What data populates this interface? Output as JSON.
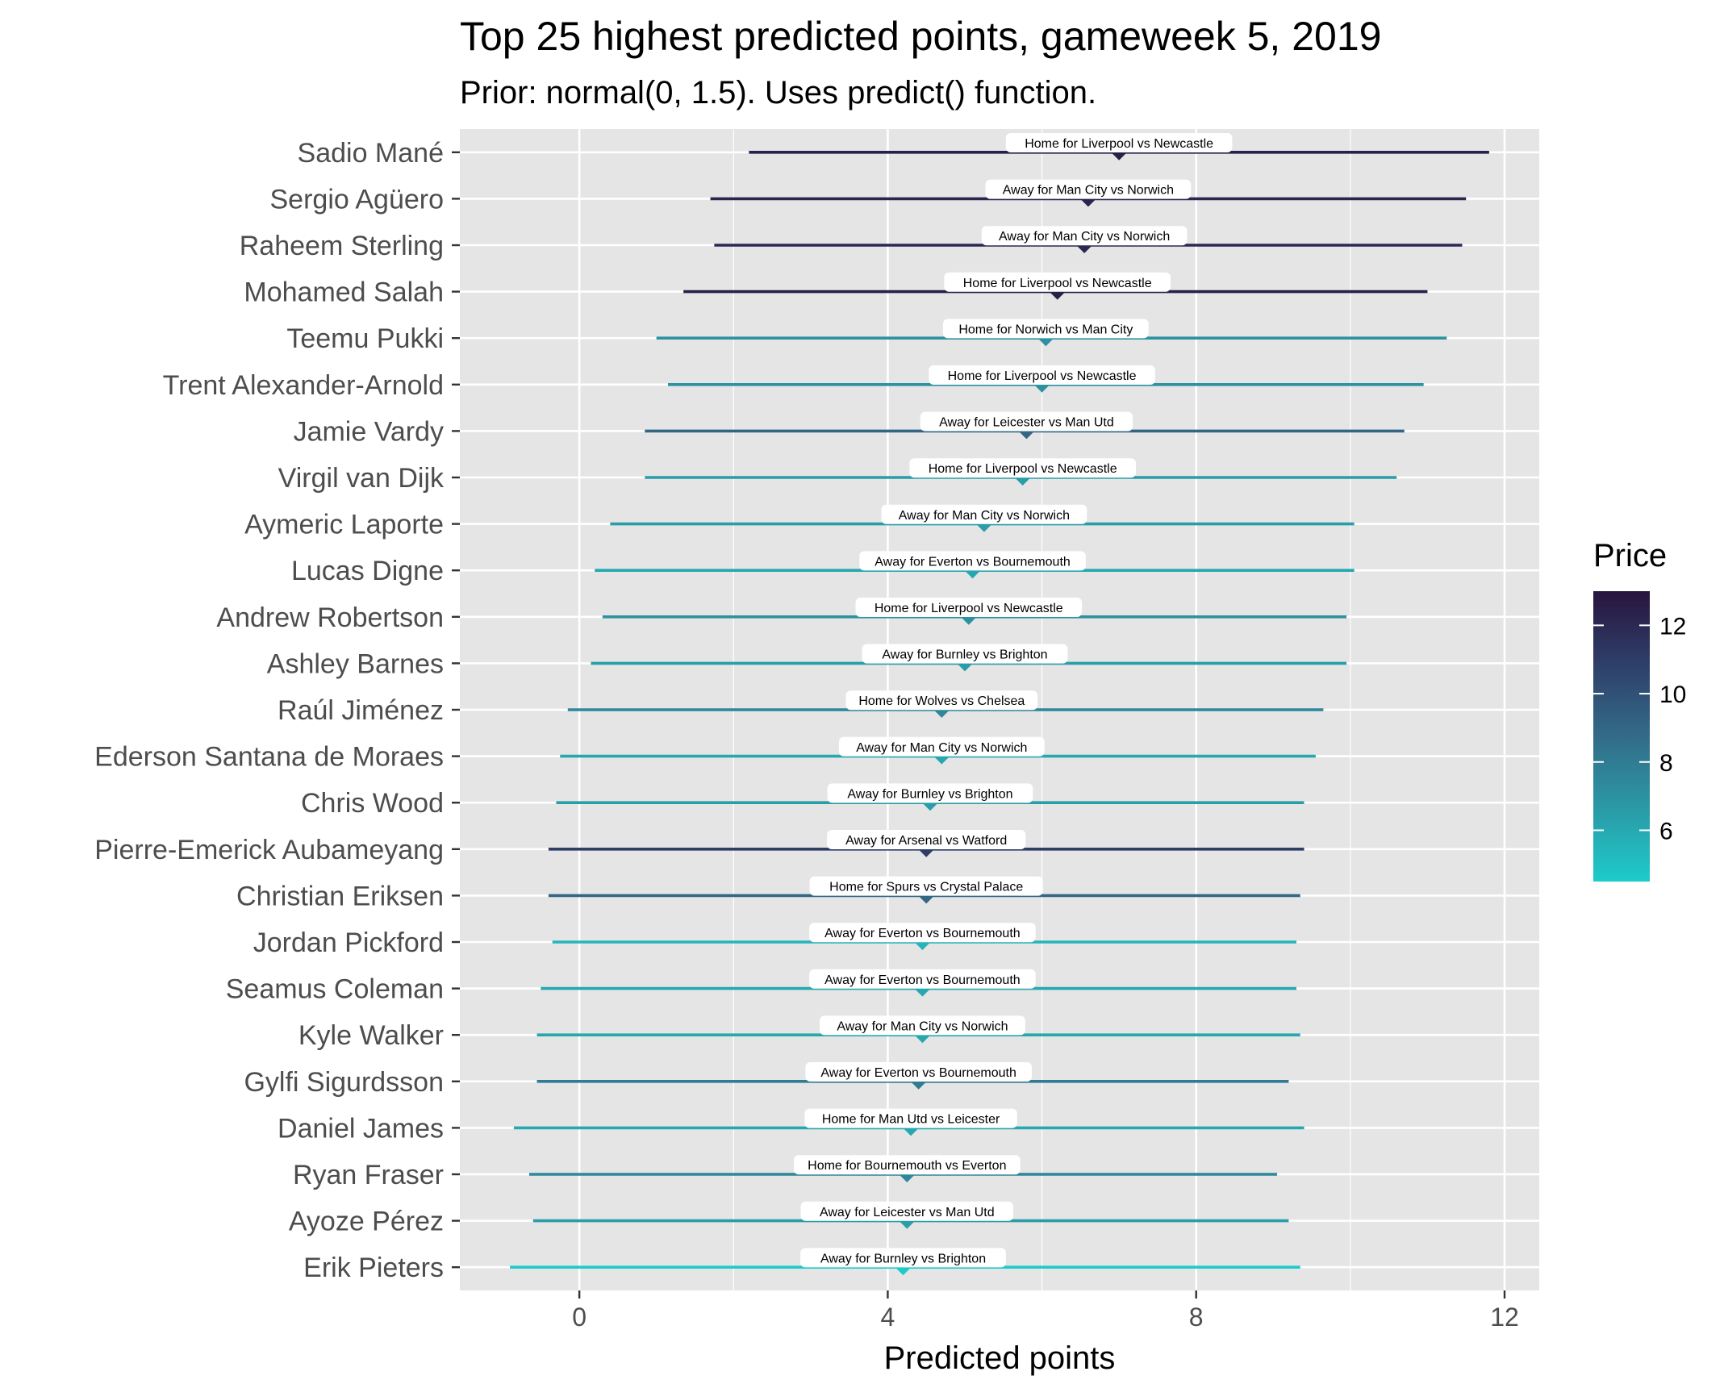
{
  "chart_data": {
    "type": "pointrange",
    "title": "Top 25 highest predicted points, gameweek 5, 2019",
    "subtitle": "Prior: normal(0, 1.5). Uses predict() function.",
    "xlabel": "Predicted points",
    "ylabel": "",
    "xlim": [
      -1.55,
      12.45
    ],
    "x_ticks": [
      0,
      4,
      8,
      12
    ],
    "x_tick_labels": [
      "0",
      "4",
      "8",
      "12"
    ],
    "grid": true,
    "legend": {
      "title": "Price",
      "position": "right",
      "range": [
        4.5,
        13.0
      ],
      "ticks": [
        6,
        8,
        10,
        12
      ],
      "tick_labels": [
        "6",
        "8",
        "10",
        "12"
      ],
      "color_low": "#1ecbcb",
      "color_high": "#28153f"
    },
    "colors": {
      "panel_background": "#e5e5e5",
      "gridline": "#ffffff"
    },
    "players": [
      {
        "name": "Sadio Mané",
        "point": 7.0,
        "lower": 2.2,
        "upper": 11.8,
        "price": 12.5,
        "label": "Home for Liverpool vs Newcastle"
      },
      {
        "name": "Sergio Agüero",
        "point": 6.6,
        "lower": 1.7,
        "upper": 11.5,
        "price": 12.2,
        "label": "Away for Man City vs Norwich"
      },
      {
        "name": "Raheem Sterling",
        "point": 6.55,
        "lower": 1.75,
        "upper": 11.45,
        "price": 12.0,
        "label": "Away for Man City vs Norwich"
      },
      {
        "name": "Mohamed Salah",
        "point": 6.2,
        "lower": 1.35,
        "upper": 11.0,
        "price": 12.5,
        "label": "Home for Liverpool vs Newcastle"
      },
      {
        "name": "Teemu Pukki",
        "point": 6.05,
        "lower": 1.0,
        "upper": 11.25,
        "price": 7.0,
        "label": "Home for Norwich vs Man City"
      },
      {
        "name": "Trent Alexander-Arnold",
        "point": 6.0,
        "lower": 1.15,
        "upper": 10.95,
        "price": 7.0,
        "label": "Home for Liverpool vs Newcastle"
      },
      {
        "name": "Jamie Vardy",
        "point": 5.8,
        "lower": 0.85,
        "upper": 10.7,
        "price": 9.0,
        "label": "Away for Leicester vs Man Utd"
      },
      {
        "name": "Virgil van Dijk",
        "point": 5.75,
        "lower": 0.85,
        "upper": 10.6,
        "price": 6.5,
        "label": "Home for Liverpool vs Newcastle"
      },
      {
        "name": "Aymeric Laporte",
        "point": 5.25,
        "lower": 0.4,
        "upper": 10.05,
        "price": 6.5,
        "label": "Away for Man City vs Norwich"
      },
      {
        "name": "Lucas Digne",
        "point": 5.1,
        "lower": 0.2,
        "upper": 10.05,
        "price": 6.0,
        "label": "Away for Everton vs Bournemouth"
      },
      {
        "name": "Andrew Robertson",
        "point": 5.05,
        "lower": 0.3,
        "upper": 9.95,
        "price": 7.0,
        "label": "Home for Liverpool vs Newcastle"
      },
      {
        "name": "Ashley Barnes",
        "point": 5.0,
        "lower": 0.15,
        "upper": 9.95,
        "price": 6.5,
        "label": "Away for Burnley vs Brighton"
      },
      {
        "name": "Raúl Jiménez",
        "point": 4.7,
        "lower": -0.15,
        "upper": 9.65,
        "price": 7.5,
        "label": "Home for Wolves vs Chelsea"
      },
      {
        "name": "Ederson Santana de Moraes",
        "point": 4.7,
        "lower": -0.25,
        "upper": 9.55,
        "price": 6.0,
        "label": "Away for Man City vs Norwich"
      },
      {
        "name": "Chris Wood",
        "point": 4.55,
        "lower": -0.3,
        "upper": 9.4,
        "price": 6.5,
        "label": "Away for Burnley vs Brighton"
      },
      {
        "name": "Pierre-Emerick Aubameyang",
        "point": 4.5,
        "lower": -0.4,
        "upper": 9.4,
        "price": 11.0,
        "label": "Away for Arsenal vs Watford"
      },
      {
        "name": "Christian Eriksen",
        "point": 4.5,
        "lower": -0.4,
        "upper": 9.35,
        "price": 9.0,
        "label": "Home for Spurs vs Crystal Palace"
      },
      {
        "name": "Jordan Pickford",
        "point": 4.45,
        "lower": -0.35,
        "upper": 9.3,
        "price": 5.5,
        "label": "Away for Everton vs Bournemouth"
      },
      {
        "name": "Seamus Coleman",
        "point": 4.45,
        "lower": -0.5,
        "upper": 9.3,
        "price": 6.0,
        "label": "Away for Everton vs Bournemouth"
      },
      {
        "name": "Kyle Walker",
        "point": 4.45,
        "lower": -0.55,
        "upper": 9.35,
        "price": 6.0,
        "label": "Away for Man City vs Norwich"
      },
      {
        "name": "Gylfi Sigurdsson",
        "point": 4.4,
        "lower": -0.55,
        "upper": 9.2,
        "price": 8.0,
        "label": "Away for Everton vs Bournemouth"
      },
      {
        "name": "Daniel James",
        "point": 4.3,
        "lower": -0.85,
        "upper": 9.4,
        "price": 6.0,
        "label": "Home for Man Utd vs Leicester"
      },
      {
        "name": "Ryan Fraser",
        "point": 4.25,
        "lower": -0.65,
        "upper": 9.05,
        "price": 7.5,
        "label": "Home for Bournemouth vs Everton"
      },
      {
        "name": "Ayoze Pérez",
        "point": 4.25,
        "lower": -0.6,
        "upper": 9.2,
        "price": 6.5,
        "label": "Away for Leicester vs Man Utd"
      },
      {
        "name": "Erik Pieters",
        "point": 4.2,
        "lower": -0.9,
        "upper": 9.35,
        "price": 4.5,
        "label": "Away for Burnley vs Brighton"
      }
    ]
  }
}
